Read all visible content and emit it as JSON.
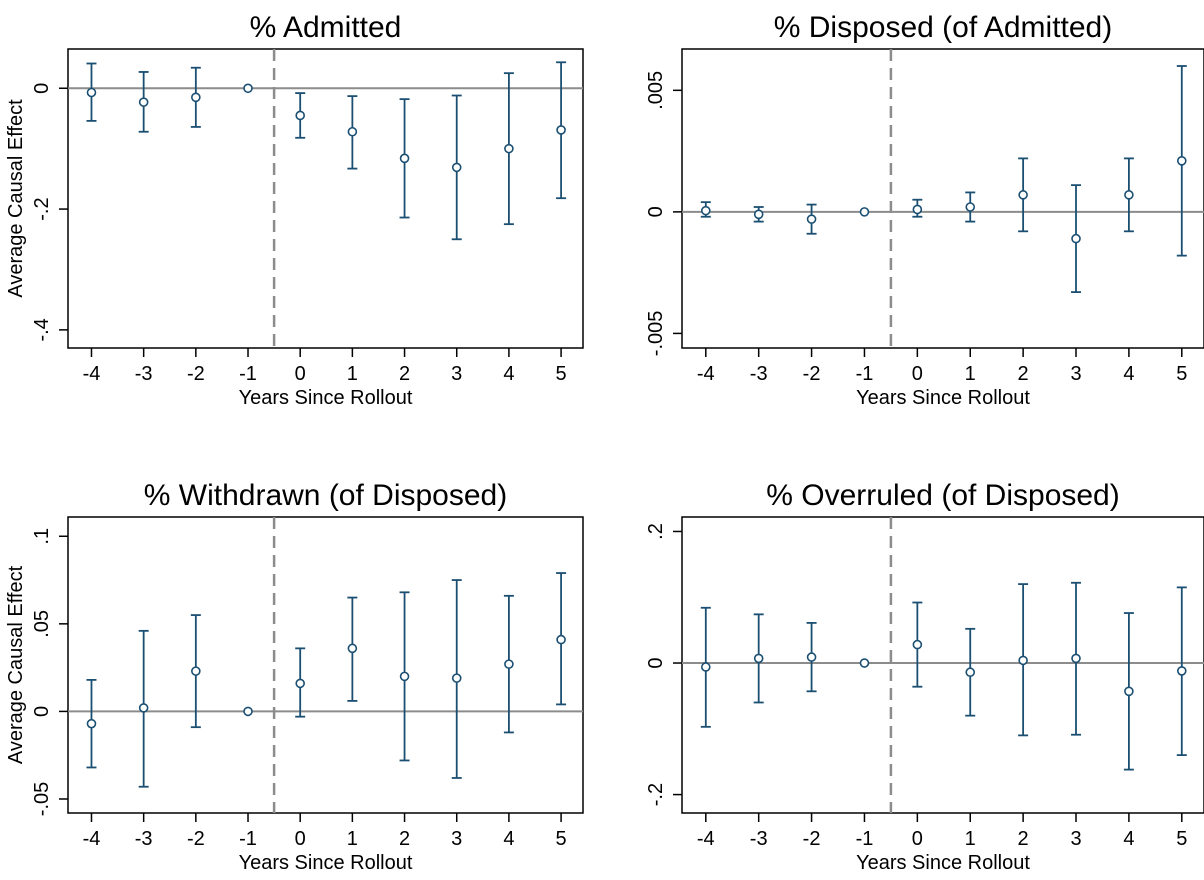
{
  "chart_data": [
    {
      "type": "scatter",
      "title": "% Admitted",
      "xlabel": "Years Since Rollout",
      "ylabel": "Average Causal Effect",
      "x": [
        -4,
        -3,
        -2,
        -1,
        0,
        1,
        2,
        3,
        4,
        5
      ],
      "xticks": [
        "-4",
        "-3",
        "-2",
        "-1",
        "0",
        "1",
        "2",
        "3",
        "4",
        "5"
      ],
      "yticks": [
        {
          "value": 0,
          "label": "0"
        },
        {
          "value": -0.2,
          "label": "-.2"
        },
        {
          "value": -0.4,
          "label": "-.4"
        }
      ],
      "ylim": [
        -0.43,
        0.065
      ],
      "point_estimate": [
        -0.007,
        -0.023,
        -0.015,
        0.0,
        -0.045,
        -0.072,
        -0.116,
        -0.131,
        -0.1,
        -0.069
      ],
      "ci_low": [
        -0.054,
        -0.072,
        -0.064,
        0.0,
        -0.082,
        -0.133,
        -0.214,
        -0.25,
        -0.225,
        -0.182
      ],
      "ci_high": [
        0.041,
        0.027,
        0.034,
        0.0,
        -0.008,
        -0.013,
        -0.018,
        -0.012,
        0.025,
        0.043
      ],
      "reference_line_y": 0,
      "event_line_x": -0.5,
      "grid": false
    },
    {
      "type": "scatter",
      "title": "% Disposed (of Admitted)",
      "xlabel": "Years Since Rollout",
      "ylabel": "",
      "x": [
        -4,
        -3,
        -2,
        -1,
        0,
        1,
        2,
        3,
        4,
        5
      ],
      "xticks": [
        "-4",
        "-3",
        "-2",
        "-1",
        "0",
        "1",
        "2",
        "3",
        "4",
        "5"
      ],
      "yticks": [
        {
          "value": 0.005,
          "label": ".005"
        },
        {
          "value": 0,
          "label": "0"
        },
        {
          "value": -0.005,
          "label": "-.005"
        }
      ],
      "ylim": [
        -0.0056,
        0.0067
      ],
      "point_estimate": [
        5e-05,
        -0.0001,
        -0.0003,
        0.0,
        0.0001,
        0.0002,
        0.0007,
        -0.0011,
        0.0007,
        0.0021
      ],
      "ci_low": [
        -0.0002,
        -0.0004,
        -0.0009,
        0.0,
        -0.0002,
        -0.0004,
        -0.0008,
        -0.0033,
        -0.0008,
        -0.0018
      ],
      "ci_high": [
        0.0004,
        0.0002,
        0.0003,
        0.0,
        0.0005,
        0.0008,
        0.0022,
        0.0011,
        0.0022,
        0.006
      ],
      "reference_line_y": 0,
      "event_line_x": -0.5,
      "grid": false
    },
    {
      "type": "scatter",
      "title": "% Withdrawn (of Disposed)",
      "xlabel": "Years Since Rollout",
      "ylabel": "Average Causal Effect",
      "x": [
        -4,
        -3,
        -2,
        -1,
        0,
        1,
        2,
        3,
        4,
        5
      ],
      "xticks": [
        "-4",
        "-3",
        "-2",
        "-1",
        "0",
        "1",
        "2",
        "3",
        "4",
        "5"
      ],
      "yticks": [
        {
          "value": 0.1,
          "label": ".1"
        },
        {
          "value": 0.05,
          "label": ".05"
        },
        {
          "value": 0,
          "label": "0"
        },
        {
          "value": -0.05,
          "label": "-.05"
        }
      ],
      "ylim": [
        -0.058,
        0.111
      ],
      "point_estimate": [
        -0.007,
        0.002,
        0.023,
        0.0,
        0.016,
        0.036,
        0.02,
        0.019,
        0.027,
        0.041
      ],
      "ci_low": [
        -0.032,
        -0.043,
        -0.009,
        0.0,
        -0.003,
        0.006,
        -0.028,
        -0.038,
        -0.012,
        0.004
      ],
      "ci_high": [
        0.018,
        0.046,
        0.055,
        0.0,
        0.036,
        0.065,
        0.068,
        0.075,
        0.066,
        0.079
      ],
      "reference_line_y": 0,
      "event_line_x": -0.5,
      "grid": false
    },
    {
      "type": "scatter",
      "title": "% Overruled (of Disposed)",
      "xlabel": "Years Since Rollout",
      "ylabel": "",
      "x": [
        -4,
        -3,
        -2,
        -1,
        0,
        1,
        2,
        3,
        4,
        5
      ],
      "xticks": [
        "-4",
        "-3",
        "-2",
        "-1",
        "0",
        "1",
        "2",
        "3",
        "4",
        "5"
      ],
      "yticks": [
        {
          "value": 0.2,
          "label": ".2"
        },
        {
          "value": 0,
          "label": "0"
        },
        {
          "value": -0.2,
          "label": "-.2"
        }
      ],
      "ylim": [
        -0.228,
        0.222
      ],
      "point_estimate": [
        -0.006,
        0.007,
        0.009,
        0.0,
        0.028,
        -0.014,
        0.004,
        0.007,
        -0.043,
        -0.012
      ],
      "ci_low": [
        -0.097,
        -0.06,
        -0.043,
        0.0,
        -0.036,
        -0.08,
        -0.11,
        -0.109,
        -0.162,
        -0.14
      ],
      "ci_high": [
        0.084,
        0.074,
        0.061,
        0.0,
        0.092,
        0.052,
        0.12,
        0.122,
        0.076,
        0.115
      ],
      "reference_line_y": 0,
      "event_line_x": -0.5,
      "grid": false
    }
  ],
  "colors": {
    "marker": "#1b4f72",
    "reference_line": "#8c8c8c",
    "event_line": "#8c8c8c",
    "axis": "#000000"
  }
}
